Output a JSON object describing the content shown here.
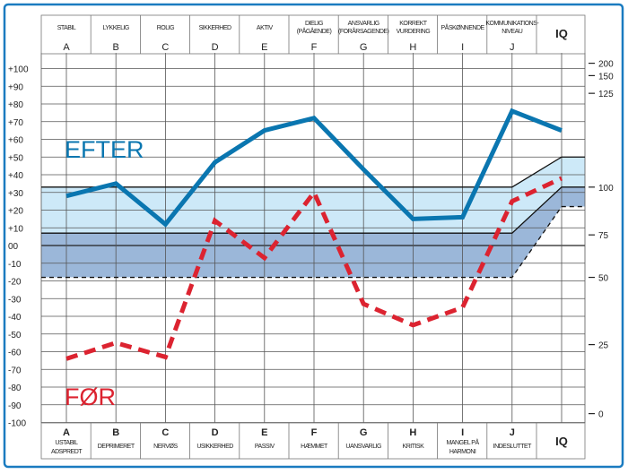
{
  "chart_data": {
    "type": "line",
    "categories": [
      "A",
      "B",
      "C",
      "D",
      "E",
      "F",
      "G",
      "H",
      "I",
      "J",
      "IQ"
    ],
    "top_labels": [
      [
        "STABIL"
      ],
      [
        "LYKKELIG"
      ],
      [
        "ROLIG"
      ],
      [
        "SIKKERHED"
      ],
      [
        "AKTIV"
      ],
      [
        "DIELIG",
        "(PÅGÅENDE)"
      ],
      [
        "ANSVARLIG",
        "(FORÅRSAGENDE)"
      ],
      [
        "KORREKT",
        "VURDERING"
      ],
      [
        "PÅSKØNNENDE"
      ],
      [
        "KOMMUNIKATIONS-",
        "NIVEAU"
      ],
      [
        ""
      ]
    ],
    "bottom_labels": [
      [
        "USTABIL",
        "ADSPREDT"
      ],
      [
        "DEPRIMERET"
      ],
      [
        "NERVØS"
      ],
      [
        "USIKKERHED"
      ],
      [
        "PASSIV"
      ],
      [
        "HÆMMET"
      ],
      [
        "UANSVARLIG"
      ],
      [
        "KRITISK"
      ],
      [
        "MANGEL PÅ",
        "HARMONI"
      ],
      [
        "INDESLUTTET"
      ],
      [
        ""
      ]
    ],
    "iq_label": "IQ",
    "left_axis": {
      "min": -100,
      "max": 100,
      "step": 10,
      "ticks": [
        "+100",
        "+90",
        "+80",
        "+70",
        "+60",
        "+50",
        "+40",
        "+30",
        "+20",
        "+10",
        "00",
        "-10",
        "-20",
        "-30",
        "-40",
        "-50",
        "-60",
        "-70",
        "-80",
        "-90",
        "-100"
      ]
    },
    "right_axis": {
      "ticks": [
        200,
        150,
        125,
        100,
        75,
        50,
        25,
        0
      ],
      "left_equiv": [
        103,
        96,
        86,
        33,
        6,
        -18,
        -56,
        -95
      ]
    },
    "series": [
      {
        "name": "EFTER",
        "color": "#0a76b0",
        "style": "solid",
        "values": [
          28,
          35,
          12,
          47,
          65,
          72,
          43,
          15,
          16,
          76,
          65
        ]
      },
      {
        "name": "FØR",
        "color": "#dc2330",
        "style": "dashed",
        "values": [
          -64,
          -55,
          -63,
          14,
          -7,
          30,
          -33,
          -45,
          -35,
          25,
          38
        ]
      }
    ],
    "bands": {
      "top": [
        33,
        33,
        33,
        33,
        33,
        33,
        33,
        33,
        33,
        33,
        50
      ],
      "middle": [
        7,
        7,
        7,
        7,
        7,
        7,
        7,
        7,
        7,
        7,
        33
      ],
      "bottom_dashed": [
        -18,
        -18,
        -18,
        -18,
        -18,
        -18,
        -18,
        -18,
        -18,
        -18,
        22
      ],
      "light_color": "#cde9f8",
      "dark_color": "#9bb7d9"
    },
    "frame_color": "#1a7bc0",
    "grid": true
  }
}
